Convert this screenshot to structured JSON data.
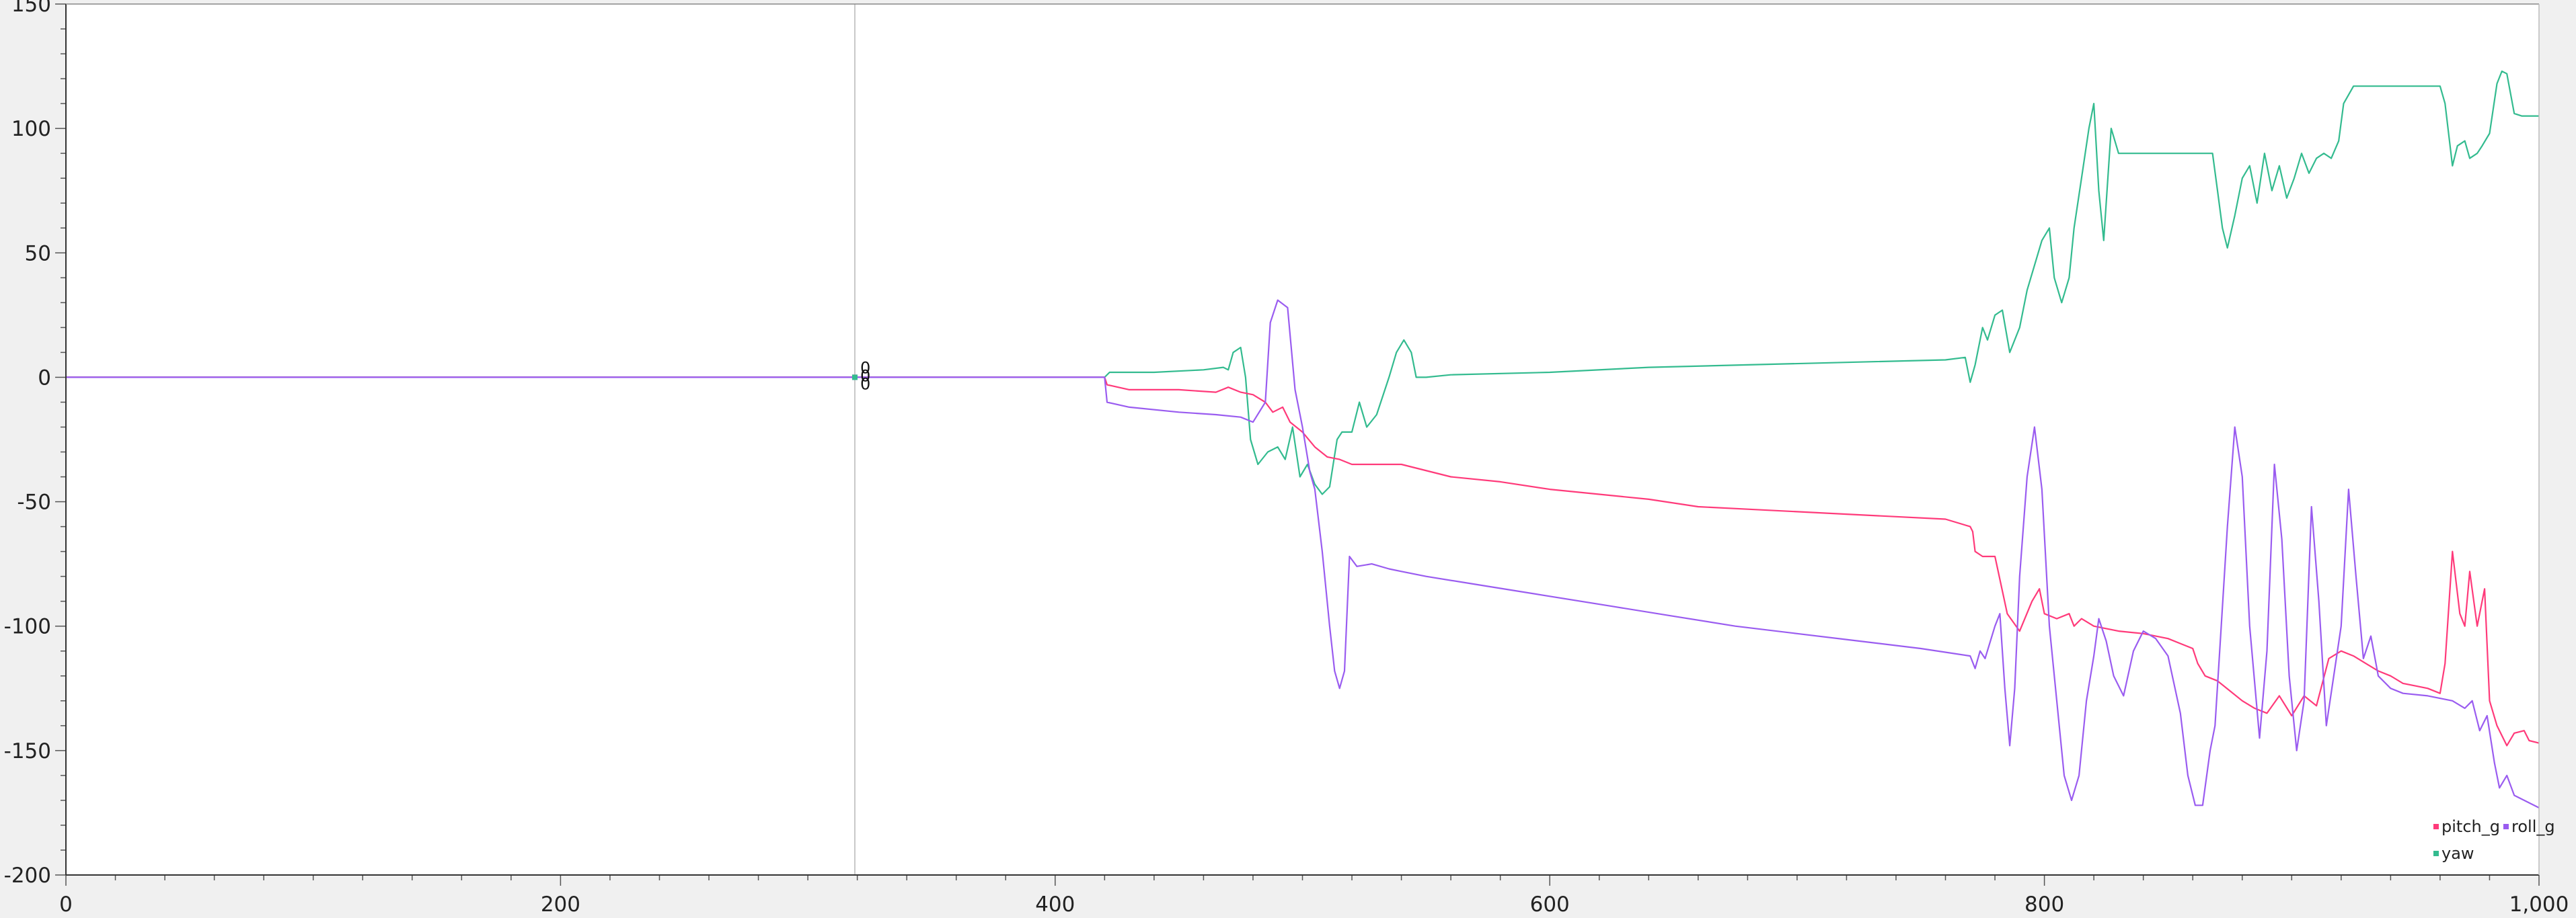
{
  "chart_data": {
    "type": "line",
    "title": "",
    "xlabel": "",
    "ylabel": "",
    "xlim": [
      0,
      1000
    ],
    "ylim": [
      -200,
      150
    ],
    "x_ticks": [
      0,
      200,
      400,
      600,
      800,
      1000
    ],
    "x_tick_labels": [
      "0",
      "200",
      "400",
      "600",
      "800",
      "1,000"
    ],
    "y_ticks": [
      150,
      100,
      50,
      0,
      -50,
      -100,
      -150,
      -200
    ],
    "y_tick_labels": [
      "150",
      "100",
      "50",
      "0",
      "-50",
      "-100",
      "-150",
      "-200"
    ],
    "grid": false,
    "legend_position": "bottom-right",
    "background": "#ffffff",
    "cursor": {
      "x": 319,
      "label": "0",
      "values": [
        0,
        0,
        0
      ]
    },
    "series": [
      {
        "name": "pitch_g",
        "color": "#ff3a7a",
        "points": [
          [
            0,
            0
          ],
          [
            420,
            0
          ],
          [
            421,
            -3
          ],
          [
            430,
            -5
          ],
          [
            450,
            -5
          ],
          [
            465,
            -6
          ],
          [
            470,
            -4
          ],
          [
            475,
            -6
          ],
          [
            480,
            -7
          ],
          [
            485,
            -10
          ],
          [
            488,
            -14
          ],
          [
            492,
            -12
          ],
          [
            495,
            -18
          ],
          [
            500,
            -22
          ],
          [
            505,
            -28
          ],
          [
            510,
            -32
          ],
          [
            515,
            -33
          ],
          [
            520,
            -35
          ],
          [
            540,
            -35
          ],
          [
            560,
            -40
          ],
          [
            580,
            -42
          ],
          [
            600,
            -45
          ],
          [
            620,
            -47
          ],
          [
            640,
            -49
          ],
          [
            660,
            -52
          ],
          [
            680,
            -53
          ],
          [
            700,
            -54
          ],
          [
            720,
            -55
          ],
          [
            740,
            -56
          ],
          [
            760,
            -57
          ],
          [
            770,
            -60
          ],
          [
            771,
            -62
          ],
          [
            772,
            -70
          ],
          [
            775,
            -72
          ],
          [
            780,
            -72
          ],
          [
            785,
            -95
          ],
          [
            790,
            -102
          ],
          [
            795,
            -90
          ],
          [
            798,
            -85
          ],
          [
            800,
            -95
          ],
          [
            805,
            -97
          ],
          [
            810,
            -95
          ],
          [
            812,
            -100
          ],
          [
            815,
            -97
          ],
          [
            820,
            -100
          ],
          [
            830,
            -102
          ],
          [
            840,
            -103
          ],
          [
            850,
            -105
          ],
          [
            855,
            -107
          ],
          [
            860,
            -109
          ],
          [
            862,
            -115
          ],
          [
            865,
            -120
          ],
          [
            870,
            -122
          ],
          [
            875,
            -126
          ],
          [
            880,
            -130
          ],
          [
            885,
            -133
          ],
          [
            890,
            -135
          ],
          [
            895,
            -128
          ],
          [
            900,
            -136
          ],
          [
            905,
            -128
          ],
          [
            910,
            -132
          ],
          [
            915,
            -113
          ],
          [
            920,
            -110
          ],
          [
            925,
            -112
          ],
          [
            930,
            -115
          ],
          [
            935,
            -118
          ],
          [
            940,
            -120
          ],
          [
            945,
            -123
          ],
          [
            950,
            -124
          ],
          [
            955,
            -125
          ],
          [
            960,
            -127
          ],
          [
            962,
            -115
          ],
          [
            965,
            -70
          ],
          [
            968,
            -95
          ],
          [
            970,
            -100
          ],
          [
            972,
            -78
          ],
          [
            975,
            -100
          ],
          [
            978,
            -85
          ],
          [
            980,
            -130
          ],
          [
            983,
            -140
          ],
          [
            987,
            -148
          ],
          [
            990,
            -143
          ],
          [
            994,
            -142
          ],
          [
            996,
            -146
          ],
          [
            1000,
            -147
          ]
        ]
      },
      {
        "name": "roll_g",
        "color": "#9a5cf0",
        "points": [
          [
            0,
            0
          ],
          [
            420,
            0
          ],
          [
            421,
            -10
          ],
          [
            430,
            -12
          ],
          [
            450,
            -14
          ],
          [
            465,
            -15
          ],
          [
            475,
            -16
          ],
          [
            480,
            -18
          ],
          [
            485,
            -10
          ],
          [
            487,
            22
          ],
          [
            490,
            31
          ],
          [
            494,
            28
          ],
          [
            497,
            -5
          ],
          [
            500,
            -20
          ],
          [
            503,
            -38
          ],
          [
            505,
            -45
          ],
          [
            508,
            -70
          ],
          [
            511,
            -100
          ],
          [
            513,
            -118
          ],
          [
            515,
            -125
          ],
          [
            517,
            -118
          ],
          [
            519,
            -72
          ],
          [
            522,
            -76
          ],
          [
            528,
            -75
          ],
          [
            535,
            -77
          ],
          [
            540,
            -78
          ],
          [
            550,
            -80
          ],
          [
            575,
            -84
          ],
          [
            600,
            -88
          ],
          [
            625,
            -92
          ],
          [
            650,
            -96
          ],
          [
            675,
            -100
          ],
          [
            700,
            -103
          ],
          [
            725,
            -106
          ],
          [
            750,
            -109
          ],
          [
            770,
            -112
          ],
          [
            772,
            -117
          ],
          [
            774,
            -110
          ],
          [
            776,
            -113
          ],
          [
            780,
            -100
          ],
          [
            782,
            -95
          ],
          [
            784,
            -125
          ],
          [
            786,
            -148
          ],
          [
            788,
            -125
          ],
          [
            790,
            -80
          ],
          [
            793,
            -40
          ],
          [
            796,
            -20
          ],
          [
            799,
            -45
          ],
          [
            802,
            -100
          ],
          [
            805,
            -130
          ],
          [
            808,
            -160
          ],
          [
            811,
            -170
          ],
          [
            814,
            -160
          ],
          [
            817,
            -130
          ],
          [
            820,
            -112
          ],
          [
            822,
            -97
          ],
          [
            825,
            -106
          ],
          [
            828,
            -120
          ],
          [
            832,
            -128
          ],
          [
            836,
            -110
          ],
          [
            840,
            -102
          ],
          [
            845,
            -105
          ],
          [
            850,
            -112
          ],
          [
            855,
            -135
          ],
          [
            858,
            -160
          ],
          [
            861,
            -172
          ],
          [
            864,
            -172
          ],
          [
            867,
            -150
          ],
          [
            869,
            -140
          ],
          [
            871,
            -108
          ],
          [
            874,
            -60
          ],
          [
            877,
            -20
          ],
          [
            880,
            -40
          ],
          [
            883,
            -100
          ],
          [
            887,
            -145
          ],
          [
            890,
            -110
          ],
          [
            893,
            -35
          ],
          [
            896,
            -65
          ],
          [
            899,
            -120
          ],
          [
            902,
            -150
          ],
          [
            905,
            -130
          ],
          [
            908,
            -52
          ],
          [
            911,
            -90
          ],
          [
            914,
            -140
          ],
          [
            917,
            -120
          ],
          [
            920,
            -100
          ],
          [
            923,
            -45
          ],
          [
            926,
            -80
          ],
          [
            929,
            -113
          ],
          [
            932,
            -104
          ],
          [
            935,
            -120
          ],
          [
            940,
            -125
          ],
          [
            945,
            -127
          ],
          [
            955,
            -128
          ],
          [
            965,
            -130
          ],
          [
            970,
            -133
          ],
          [
            973,
            -130
          ],
          [
            976,
            -142
          ],
          [
            979,
            -136
          ],
          [
            982,
            -155
          ],
          [
            984,
            -165
          ],
          [
            987,
            -160
          ],
          [
            990,
            -168
          ],
          [
            994,
            -170
          ],
          [
            1000,
            -173
          ]
        ]
      },
      {
        "name": "yaw",
        "color": "#33bb8f",
        "points": [
          [
            0,
            0
          ],
          [
            420,
            0
          ],
          [
            422,
            2
          ],
          [
            440,
            2
          ],
          [
            460,
            3
          ],
          [
            468,
            4
          ],
          [
            470,
            3
          ],
          [
            472,
            10
          ],
          [
            475,
            12
          ],
          [
            477,
            0
          ],
          [
            479,
            -25
          ],
          [
            482,
            -35
          ],
          [
            486,
            -30
          ],
          [
            490,
            -28
          ],
          [
            493,
            -33
          ],
          [
            496,
            -20
          ],
          [
            499,
            -40
          ],
          [
            502,
            -35
          ],
          [
            505,
            -43
          ],
          [
            508,
            -47
          ],
          [
            511,
            -44
          ],
          [
            514,
            -25
          ],
          [
            516,
            -22
          ],
          [
            520,
            -22
          ],
          [
            523,
            -10
          ],
          [
            526,
            -20
          ],
          [
            530,
            -15
          ],
          [
            535,
            0
          ],
          [
            538,
            10
          ],
          [
            541,
            15
          ],
          [
            544,
            10
          ],
          [
            546,
            0
          ],
          [
            550,
            0
          ],
          [
            560,
            1
          ],
          [
            600,
            2
          ],
          [
            640,
            4
          ],
          [
            680,
            5
          ],
          [
            720,
            6
          ],
          [
            760,
            7
          ],
          [
            768,
            8
          ],
          [
            770,
            -2
          ],
          [
            772,
            5
          ],
          [
            775,
            20
          ],
          [
            777,
            15
          ],
          [
            780,
            25
          ],
          [
            783,
            27
          ],
          [
            786,
            10
          ],
          [
            790,
            20
          ],
          [
            793,
            35
          ],
          [
            796,
            45
          ],
          [
            799,
            55
          ],
          [
            802,
            60
          ],
          [
            804,
            40
          ],
          [
            807,
            30
          ],
          [
            810,
            40
          ],
          [
            812,
            60
          ],
          [
            815,
            80
          ],
          [
            818,
            100
          ],
          [
            820,
            110
          ],
          [
            822,
            75
          ],
          [
            824,
            55
          ],
          [
            827,
            100
          ],
          [
            830,
            90
          ],
          [
            840,
            90
          ],
          [
            860,
            90
          ],
          [
            868,
            90
          ],
          [
            870,
            75
          ],
          [
            872,
            60
          ],
          [
            874,
            52
          ],
          [
            877,
            65
          ],
          [
            880,
            80
          ],
          [
            883,
            85
          ],
          [
            886,
            70
          ],
          [
            889,
            90
          ],
          [
            892,
            75
          ],
          [
            895,
            85
          ],
          [
            898,
            72
          ],
          [
            901,
            80
          ],
          [
            904,
            90
          ],
          [
            907,
            82
          ],
          [
            910,
            88
          ],
          [
            913,
            90
          ],
          [
            916,
            88
          ],
          [
            919,
            95
          ],
          [
            921,
            110
          ],
          [
            925,
            117
          ],
          [
            940,
            117
          ],
          [
            960,
            117
          ],
          [
            962,
            110
          ],
          [
            965,
            85
          ],
          [
            967,
            93
          ],
          [
            970,
            95
          ],
          [
            972,
            88
          ],
          [
            975,
            90
          ],
          [
            977,
            93
          ],
          [
            980,
            98
          ],
          [
            983,
            118
          ],
          [
            985,
            123
          ],
          [
            987,
            122
          ],
          [
            990,
            106
          ],
          [
            993,
            105
          ],
          [
            1000,
            105
          ]
        ]
      }
    ]
  }
}
